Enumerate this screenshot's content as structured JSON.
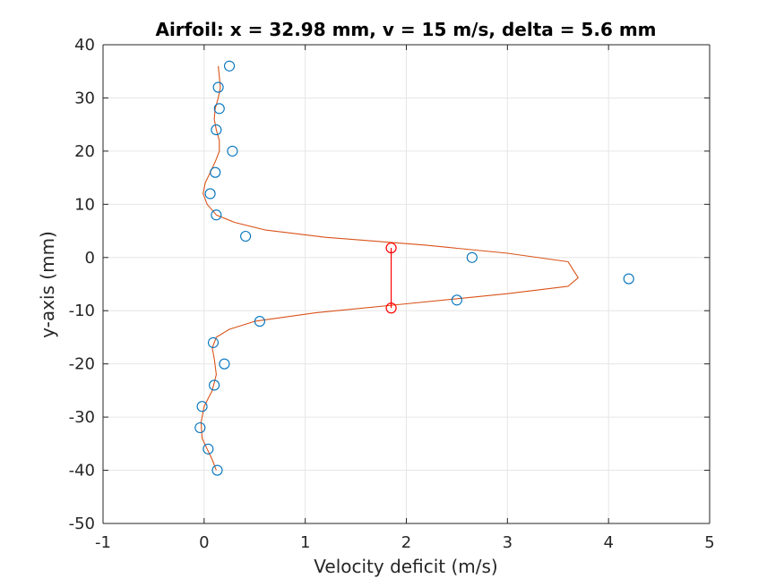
{
  "chart_data": {
    "type": "scatter",
    "title": "Airfoil: x = 32.98 mm, v = 15 m/s, delta = 5.6 mm",
    "xlabel": "Velocity deficit (m/s)",
    "ylabel": "y-axis (mm)",
    "xlim": [
      -1,
      5
    ],
    "ylim": [
      -50,
      40
    ],
    "xticks": [
      -1,
      0,
      1,
      2,
      3,
      4,
      5
    ],
    "yticks": [
      -50,
      -40,
      -30,
      -20,
      -10,
      0,
      10,
      20,
      30,
      40
    ],
    "grid": true,
    "legend": "none",
    "colors": {
      "measured": "#0072BD",
      "fit": "#D95319",
      "width_marker": "#FF0000",
      "grid": "#E6E6E6",
      "axis": "#262626"
    },
    "series": [
      {
        "type": "scatter",
        "marker": "circle",
        "x": [
          0.25,
          0.14,
          0.15,
          0.12,
          0.28,
          0.11,
          0.06,
          0.12,
          0.41,
          2.65,
          4.2,
          2.5,
          0.55,
          0.09,
          0.2,
          0.1,
          -0.02,
          -0.04,
          0.04,
          0.13
        ],
        "y": [
          36,
          32,
          28,
          24,
          20,
          16,
          12,
          8,
          4,
          0,
          -4,
          -8,
          -12,
          -16,
          -20,
          -24,
          -28,
          -32,
          -36,
          -40
        ]
      },
      {
        "type": "line",
        "x": [
          0.14,
          0.15,
          0.16,
          0.14,
          0.11,
          0.1,
          0.12,
          0.15,
          0.15,
          0.11,
          0.06,
          0.01,
          -0.01,
          0.03,
          0.12,
          0.3,
          0.6,
          1.2,
          2.2,
          3.0,
          3.6,
          3.7,
          3.6,
          3.0,
          2.0,
          1.1,
          0.5,
          0.25,
          0.12,
          0.08,
          0.1,
          0.12,
          0.08,
          0.0,
          -0.03,
          -0.02,
          0.03,
          0.08,
          0.12
        ],
        "y": [
          36,
          34,
          32,
          30,
          28,
          26,
          24,
          22,
          20,
          18,
          16,
          14,
          12,
          10,
          8,
          6.6,
          5.2,
          3.8,
          2.3,
          0.8,
          -0.8,
          -3.8,
          -5.4,
          -6.8,
          -8.7,
          -10.4,
          -12.0,
          -13.5,
          -15.0,
          -17,
          -19,
          -22,
          -25,
          -28,
          -31,
          -34,
          -36,
          -38,
          -40
        ]
      },
      {
        "type": "width_marker",
        "x": [
          1.85,
          1.85
        ],
        "y": [
          1.8,
          -9.5
        ]
      }
    ]
  }
}
